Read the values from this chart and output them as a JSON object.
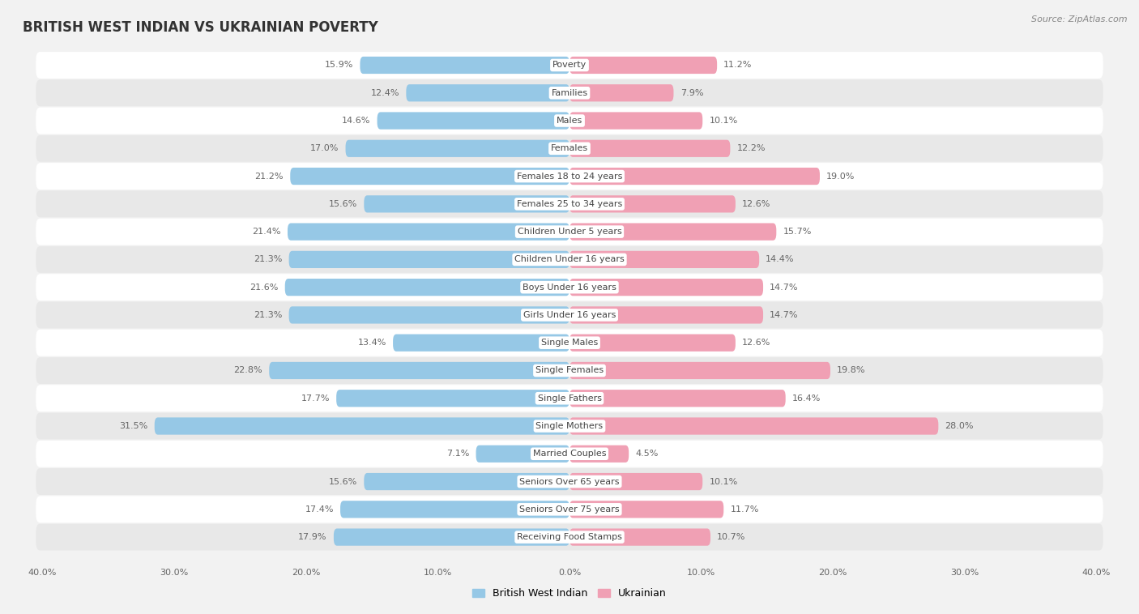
{
  "title": "BRITISH WEST INDIAN VS UKRAINIAN POVERTY",
  "source": "Source: ZipAtlas.com",
  "categories": [
    "Poverty",
    "Families",
    "Males",
    "Females",
    "Females 18 to 24 years",
    "Females 25 to 34 years",
    "Children Under 5 years",
    "Children Under 16 years",
    "Boys Under 16 years",
    "Girls Under 16 years",
    "Single Males",
    "Single Females",
    "Single Fathers",
    "Single Mothers",
    "Married Couples",
    "Seniors Over 65 years",
    "Seniors Over 75 years",
    "Receiving Food Stamps"
  ],
  "british_west_indian": [
    15.9,
    12.4,
    14.6,
    17.0,
    21.2,
    15.6,
    21.4,
    21.3,
    21.6,
    21.3,
    13.4,
    22.8,
    17.7,
    31.5,
    7.1,
    15.6,
    17.4,
    17.9
  ],
  "ukrainian": [
    11.2,
    7.9,
    10.1,
    12.2,
    19.0,
    12.6,
    15.7,
    14.4,
    14.7,
    14.7,
    12.6,
    19.8,
    16.4,
    28.0,
    4.5,
    10.1,
    11.7,
    10.7
  ],
  "bwi_color": "#96C8E6",
  "ukr_color": "#F0A0B4",
  "bg_color": "#f2f2f2",
  "row_color_even": "#ffffff",
  "row_color_odd": "#e8e8e8",
  "max_val": 40.0,
  "legend_bwi": "British West Indian",
  "legend_ukr": "Ukrainian",
  "title_fontsize": 12,
  "source_fontsize": 8,
  "label_fontsize": 8,
  "value_fontsize": 8,
  "axis_fontsize": 8
}
